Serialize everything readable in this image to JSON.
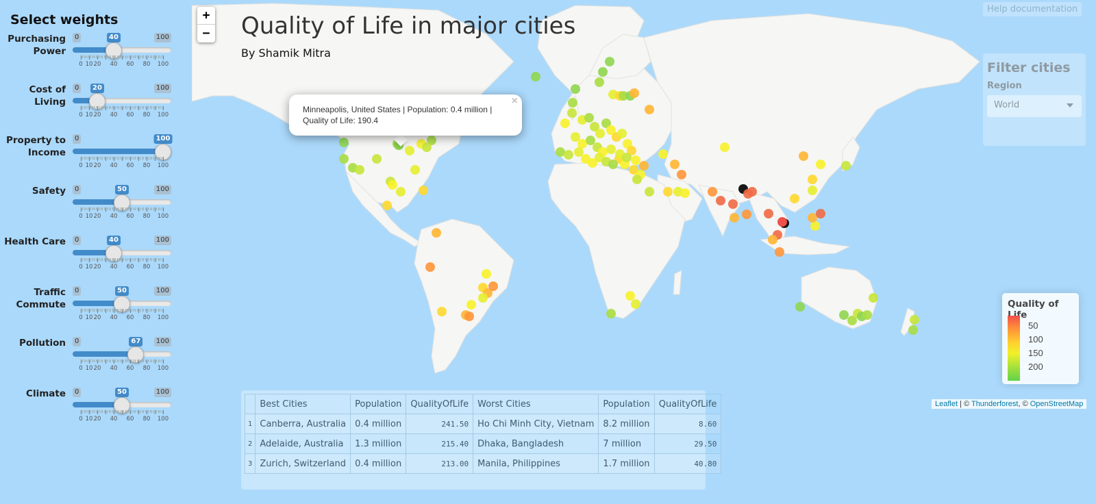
{
  "sidebar": {
    "title": "Select weights",
    "sliders": [
      {
        "label": "Purchasing Power",
        "value": "40",
        "level": 40
      },
      {
        "label": "Cost of Living",
        "value": "20",
        "level": 20
      },
      {
        "label": "Property to Income",
        "value": "100",
        "level": 100
      },
      {
        "label": "Safety",
        "value": "50",
        "level": 50
      },
      {
        "label": "Health Care",
        "value": "40",
        "level": 40
      },
      {
        "label": "Traffic Commute",
        "value": "50",
        "level": 50
      },
      {
        "label": "Pollution",
        "value": "67",
        "level": 67
      },
      {
        "label": "Climate",
        "value": "50",
        "level": 50
      }
    ],
    "min_label": "0",
    "max_label": "100",
    "tick_labels": [
      "0",
      "10",
      "20",
      "40",
      "60",
      "80",
      "100"
    ],
    "track_color": "#428bca"
  },
  "map": {
    "title": "Quality of Life in major cities",
    "subtitle": "By Shamik Mitra",
    "zoom_in": "+",
    "zoom_out": "−",
    "help_link": "Help documentation",
    "popup": {
      "text": "Minneapolis, United States | Population: 0.4 million | Quality of Life: 190.4",
      "close": "×"
    },
    "filter": {
      "title": "Filter cities",
      "region_label": "Region",
      "region_value": "World"
    },
    "legend": {
      "title": "Quality of Life",
      "labels": [
        "50",
        "100",
        "150",
        "200"
      ]
    },
    "attribution": {
      "leaflet": "Leaflet",
      "sep1": " | © ",
      "thunderforest": "Thunderforest",
      "sep2": ", © ",
      "osm": "OpenStreetMap"
    }
  },
  "table": {
    "headers": [
      "",
      "Best Cities",
      "Population",
      "QualityOfLife",
      "Worst Cities",
      "Population",
      "QualityOfLife"
    ],
    "rows": [
      [
        "1",
        "Canberra, Australia",
        "0.4 million",
        "241.50",
        "Ho Chi Minh City, Vietnam",
        "8.2 million",
        "8.60"
      ],
      [
        "2",
        "Adelaide, Australia",
        "1.3 million",
        "215.40",
        "Dhaka, Bangladesh",
        "7 million",
        "29.50"
      ],
      [
        "3",
        "Zurich, Switzerland",
        "0.4 million",
        "213.00",
        "Manila, Philippines",
        "1.7 million",
        "40.80"
      ]
    ]
  },
  "colors": {
    "ocean": "#abd9fb",
    "land": "#f6f6f4",
    "qol_low": "#f0504a",
    "qol_mid": "#f0f02a",
    "qol_high": "#62d24a"
  }
}
